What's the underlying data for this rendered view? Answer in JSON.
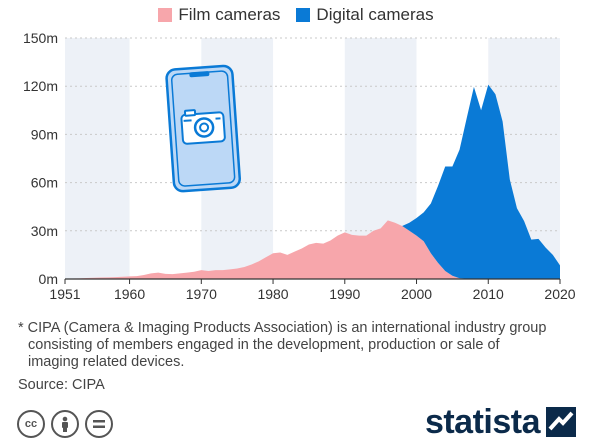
{
  "legend": {
    "film_label": "Film cameras",
    "digital_label": "Digital cameras",
    "film_color": "#f7a6ab",
    "digital_color": "#0a7ad6"
  },
  "chart_data": {
    "type": "area",
    "stacked": true,
    "x_ticks": [
      1951,
      1960,
      1970,
      1980,
      1990,
      2000,
      2010,
      2020
    ],
    "y_ticks": [
      "0m",
      "30m",
      "60m",
      "90m",
      "120m",
      "150m"
    ],
    "ylim": [
      0,
      150
    ],
    "xlim": [
      1951,
      2020
    ],
    "grid": true,
    "legend_position": "top-center",
    "years": [
      1951,
      1952,
      1953,
      1954,
      1955,
      1956,
      1957,
      1958,
      1959,
      1960,
      1961,
      1962,
      1963,
      1964,
      1965,
      1966,
      1967,
      1968,
      1969,
      1970,
      1971,
      1972,
      1973,
      1974,
      1975,
      1976,
      1977,
      1978,
      1979,
      1980,
      1981,
      1982,
      1983,
      1984,
      1985,
      1986,
      1987,
      1988,
      1989,
      1990,
      1991,
      1992,
      1993,
      1994,
      1995,
      1996,
      1997,
      1998,
      1999,
      2000,
      2001,
      2002,
      2003,
      2004,
      2005,
      2006,
      2007,
      2008,
      2009,
      2010,
      2011,
      2012,
      2013,
      2014,
      2015,
      2016,
      2017,
      2018,
      2019,
      2020
    ],
    "series": [
      {
        "name": "Film cameras",
        "values": [
          0.2,
          0.3,
          0.4,
          0.6,
          0.8,
          0.9,
          1.0,
          1.2,
          1.4,
          1.6,
          1.8,
          2.5,
          3.5,
          4.0,
          3.2,
          3.0,
          3.5,
          4.0,
          4.5,
          5.5,
          5.0,
          5.5,
          5.5,
          6.0,
          6.5,
          7.5,
          9.0,
          11.0,
          13.5,
          16.0,
          16.5,
          15.0,
          17.0,
          19.0,
          21.5,
          22.5,
          22.0,
          24.0,
          27.0,
          29.0,
          27.5,
          27.0,
          27.0,
          30.0,
          31.5,
          36.5,
          35.0,
          33.0,
          30.0,
          27.0,
          23.5,
          16.0,
          10.0,
          5.0,
          2.0,
          0.5,
          0.2,
          0.1,
          0,
          0,
          0,
          0,
          0,
          0,
          0,
          0,
          0,
          0,
          0,
          0
        ]
      },
      {
        "name": "Digital cameras",
        "values": [
          0,
          0,
          0,
          0,
          0,
          0,
          0,
          0,
          0,
          0,
          0,
          0,
          0,
          0,
          0,
          0,
          0,
          0,
          0,
          0,
          0,
          0,
          0,
          0,
          0,
          0,
          0,
          0,
          0,
          0,
          0,
          0,
          0,
          0,
          0,
          0,
          0,
          0,
          0,
          0,
          0,
          0,
          0,
          0,
          0,
          0,
          0,
          0,
          5.0,
          11.0,
          18.0,
          31.0,
          48.0,
          65.0,
          68.0,
          80.0,
          100.0,
          119.5,
          105.0,
          121.0,
          115.0,
          98.0,
          62.0,
          44.0,
          36.0,
          24.5,
          25.0,
          19.5,
          15.0,
          8.5
        ]
      }
    ]
  },
  "footnote": {
    "line1": "* CIPA (Camera & Imaging Products Association) is an international industry group",
    "line2": "consisting of members engaged in the development, production or sale of",
    "line3": "imaging related devices."
  },
  "source": "Source: CIPA",
  "logo_text": "statista",
  "cc_icons": [
    "cc-icon",
    "by-icon",
    "nd-icon"
  ]
}
